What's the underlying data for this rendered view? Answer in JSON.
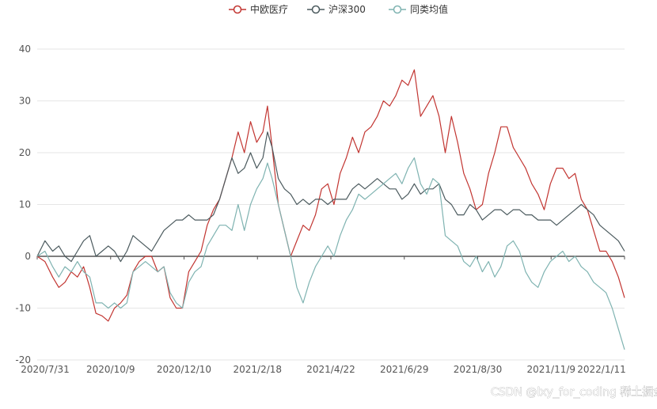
{
  "chart_data": {
    "type": "line",
    "title": "",
    "xlabel": "",
    "ylabel": "",
    "ylim": [
      -20,
      40
    ],
    "yticks": [
      -20,
      -10,
      0,
      10,
      20,
      30,
      40
    ],
    "x_ticks": [
      "2020/7/31",
      "2020/10/9",
      "2020/12/10",
      "2021/2/18",
      "2021/4/22",
      "2021/6/29",
      "2021/8/30",
      "2021/11/9",
      "2022/1/11"
    ],
    "x_index_range": [
      0,
      360
    ],
    "legend": "top-center",
    "grid": true,
    "series": [
      {
        "name": "中欧医疗",
        "color": "#c23531",
        "points": [
          [
            0,
            0
          ],
          [
            5,
            -1
          ],
          [
            10,
            -4
          ],
          [
            14,
            -6
          ],
          [
            18,
            -5
          ],
          [
            22,
            -3
          ],
          [
            26,
            -4
          ],
          [
            30,
            -2
          ],
          [
            34,
            -6
          ],
          [
            38,
            -11
          ],
          [
            42,
            -11.5
          ],
          [
            46,
            -12.5
          ],
          [
            50,
            -10
          ],
          [
            54,
            -9
          ],
          [
            58,
            -7.5
          ],
          [
            62,
            -3
          ],
          [
            66,
            -1
          ],
          [
            70,
            0
          ],
          [
            74,
            0
          ],
          [
            78,
            -3
          ],
          [
            82,
            -2
          ],
          [
            86,
            -8
          ],
          [
            90,
            -10
          ],
          [
            94,
            -10
          ],
          [
            98,
            -3
          ],
          [
            102,
            -1
          ],
          [
            106,
            1
          ],
          [
            110,
            6
          ],
          [
            114,
            9
          ],
          [
            118,
            11
          ],
          [
            122,
            15
          ],
          [
            126,
            19
          ],
          [
            130,
            24
          ],
          [
            134,
            20
          ],
          [
            138,
            26
          ],
          [
            142,
            22
          ],
          [
            146,
            24
          ],
          [
            149,
            29
          ],
          [
            152,
            21
          ],
          [
            156,
            10
          ],
          [
            160,
            5
          ],
          [
            164,
            0
          ],
          [
            168,
            3
          ],
          [
            172,
            6
          ],
          [
            176,
            5
          ],
          [
            180,
            8
          ],
          [
            184,
            13
          ],
          [
            188,
            14
          ],
          [
            192,
            10
          ],
          [
            196,
            16
          ],
          [
            200,
            19
          ],
          [
            204,
            23
          ],
          [
            208,
            20
          ],
          [
            212,
            24
          ],
          [
            216,
            25
          ],
          [
            220,
            27
          ],
          [
            224,
            30
          ],
          [
            228,
            29
          ],
          [
            232,
            31
          ],
          [
            236,
            34
          ],
          [
            240,
            33
          ],
          [
            244,
            36
          ],
          [
            248,
            27
          ],
          [
            252,
            29
          ],
          [
            256,
            31
          ],
          [
            260,
            27
          ],
          [
            264,
            20
          ],
          [
            268,
            27
          ],
          [
            272,
            22
          ],
          [
            276,
            16
          ],
          [
            280,
            13
          ],
          [
            284,
            9
          ],
          [
            288,
            10
          ],
          [
            292,
            16
          ],
          [
            296,
            20
          ],
          [
            300,
            25
          ],
          [
            304,
            25
          ],
          [
            308,
            21
          ],
          [
            312,
            19
          ],
          [
            316,
            17
          ],
          [
            320,
            14
          ],
          [
            324,
            12
          ],
          [
            328,
            9
          ],
          [
            332,
            14
          ],
          [
            336,
            17
          ],
          [
            340,
            17
          ],
          [
            344,
            15
          ],
          [
            348,
            16
          ],
          [
            352,
            11
          ],
          [
            356,
            9
          ],
          [
            360,
            5
          ],
          [
            364,
            1
          ],
          [
            368,
            1
          ],
          [
            372,
            -1
          ],
          [
            376,
            -4
          ],
          [
            380,
            -8
          ]
        ]
      },
      {
        "name": "沪深300",
        "color": "#4b5a5e",
        "points": [
          [
            0,
            0
          ],
          [
            5,
            3
          ],
          [
            10,
            1
          ],
          [
            14,
            2
          ],
          [
            18,
            0
          ],
          [
            22,
            -1
          ],
          [
            26,
            1
          ],
          [
            30,
            3
          ],
          [
            34,
            4
          ],
          [
            38,
            0
          ],
          [
            42,
            1
          ],
          [
            46,
            2
          ],
          [
            50,
            1
          ],
          [
            54,
            -1
          ],
          [
            58,
            1
          ],
          [
            62,
            4
          ],
          [
            66,
            3
          ],
          [
            70,
            2
          ],
          [
            74,
            1
          ],
          [
            78,
            3
          ],
          [
            82,
            5
          ],
          [
            86,
            6
          ],
          [
            90,
            7
          ],
          [
            94,
            7
          ],
          [
            98,
            8
          ],
          [
            102,
            7
          ],
          [
            106,
            7
          ],
          [
            110,
            7
          ],
          [
            114,
            8
          ],
          [
            118,
            11
          ],
          [
            122,
            15
          ],
          [
            126,
            19
          ],
          [
            130,
            16
          ],
          [
            134,
            17
          ],
          [
            138,
            20
          ],
          [
            142,
            17
          ],
          [
            146,
            19
          ],
          [
            149,
            24
          ],
          [
            152,
            21
          ],
          [
            156,
            15
          ],
          [
            160,
            13
          ],
          [
            164,
            12
          ],
          [
            168,
            10
          ],
          [
            172,
            11
          ],
          [
            176,
            10
          ],
          [
            180,
            11
          ],
          [
            184,
            11
          ],
          [
            188,
            10
          ],
          [
            192,
            11
          ],
          [
            196,
            11
          ],
          [
            200,
            11
          ],
          [
            204,
            13
          ],
          [
            208,
            14
          ],
          [
            212,
            13
          ],
          [
            216,
            14
          ],
          [
            220,
            15
          ],
          [
            224,
            14
          ],
          [
            228,
            13
          ],
          [
            232,
            13
          ],
          [
            236,
            11
          ],
          [
            240,
            12
          ],
          [
            244,
            14
          ],
          [
            248,
            12
          ],
          [
            252,
            13
          ],
          [
            256,
            13
          ],
          [
            260,
            14
          ],
          [
            264,
            11
          ],
          [
            268,
            10
          ],
          [
            272,
            8
          ],
          [
            276,
            8
          ],
          [
            280,
            10
          ],
          [
            284,
            9
          ],
          [
            288,
            7
          ],
          [
            292,
            8
          ],
          [
            296,
            9
          ],
          [
            300,
            9
          ],
          [
            304,
            8
          ],
          [
            308,
            9
          ],
          [
            312,
            9
          ],
          [
            316,
            8
          ],
          [
            320,
            8
          ],
          [
            324,
            7
          ],
          [
            328,
            7
          ],
          [
            332,
            7
          ],
          [
            336,
            6
          ],
          [
            340,
            7
          ],
          [
            344,
            8
          ],
          [
            348,
            9
          ],
          [
            352,
            10
          ],
          [
            356,
            9
          ],
          [
            360,
            8
          ],
          [
            364,
            6
          ],
          [
            368,
            5
          ],
          [
            372,
            4
          ],
          [
            376,
            3
          ],
          [
            380,
            1
          ]
        ]
      },
      {
        "name": "同类均值",
        "color": "#7fb3b1",
        "points": [
          [
            0,
            0
          ],
          [
            5,
            1
          ],
          [
            10,
            -2
          ],
          [
            14,
            -4
          ],
          [
            18,
            -2
          ],
          [
            22,
            -3
          ],
          [
            26,
            -1
          ],
          [
            30,
            -3
          ],
          [
            34,
            -4
          ],
          [
            38,
            -9
          ],
          [
            42,
            -9
          ],
          [
            46,
            -10
          ],
          [
            50,
            -9
          ],
          [
            54,
            -10
          ],
          [
            58,
            -9
          ],
          [
            62,
            -3
          ],
          [
            66,
            -2
          ],
          [
            70,
            -1
          ],
          [
            74,
            -2
          ],
          [
            78,
            -3
          ],
          [
            82,
            -2
          ],
          [
            86,
            -7
          ],
          [
            90,
            -9
          ],
          [
            94,
            -10
          ],
          [
            98,
            -5
          ],
          [
            102,
            -3
          ],
          [
            106,
            -2
          ],
          [
            110,
            2
          ],
          [
            114,
            4
          ],
          [
            118,
            6
          ],
          [
            122,
            6
          ],
          [
            126,
            5
          ],
          [
            130,
            10
          ],
          [
            134,
            5
          ],
          [
            138,
            10
          ],
          [
            142,
            13
          ],
          [
            146,
            15
          ],
          [
            149,
            18
          ],
          [
            152,
            15
          ],
          [
            156,
            10
          ],
          [
            160,
            5
          ],
          [
            164,
            0
          ],
          [
            168,
            -6
          ],
          [
            172,
            -9
          ],
          [
            176,
            -5
          ],
          [
            180,
            -2
          ],
          [
            184,
            0
          ],
          [
            188,
            2
          ],
          [
            192,
            0
          ],
          [
            196,
            4
          ],
          [
            200,
            7
          ],
          [
            204,
            9
          ],
          [
            208,
            12
          ],
          [
            212,
            11
          ],
          [
            216,
            12
          ],
          [
            220,
            13
          ],
          [
            224,
            14
          ],
          [
            228,
            15
          ],
          [
            232,
            16
          ],
          [
            236,
            14
          ],
          [
            240,
            17
          ],
          [
            244,
            19
          ],
          [
            248,
            14
          ],
          [
            252,
            12
          ],
          [
            256,
            15
          ],
          [
            260,
            14
          ],
          [
            264,
            4
          ],
          [
            268,
            3
          ],
          [
            272,
            2
          ],
          [
            276,
            -1
          ],
          [
            280,
            -2
          ],
          [
            284,
            0
          ],
          [
            288,
            -3
          ],
          [
            292,
            -1
          ],
          [
            296,
            -4
          ],
          [
            300,
            -2
          ],
          [
            304,
            2
          ],
          [
            308,
            3
          ],
          [
            312,
            1
          ],
          [
            316,
            -3
          ],
          [
            320,
            -5
          ],
          [
            324,
            -6
          ],
          [
            328,
            -3
          ],
          [
            332,
            -1
          ],
          [
            336,
            0
          ],
          [
            340,
            1
          ],
          [
            344,
            -1
          ],
          [
            348,
            0
          ],
          [
            352,
            -2
          ],
          [
            356,
            -3
          ],
          [
            360,
            -5
          ],
          [
            364,
            -6
          ],
          [
            368,
            -7
          ],
          [
            372,
            -10
          ],
          [
            376,
            -14
          ],
          [
            380,
            -18
          ]
        ]
      }
    ]
  },
  "watermark": "CSDN @lxy_for_coding  稀土掘金技术社区"
}
